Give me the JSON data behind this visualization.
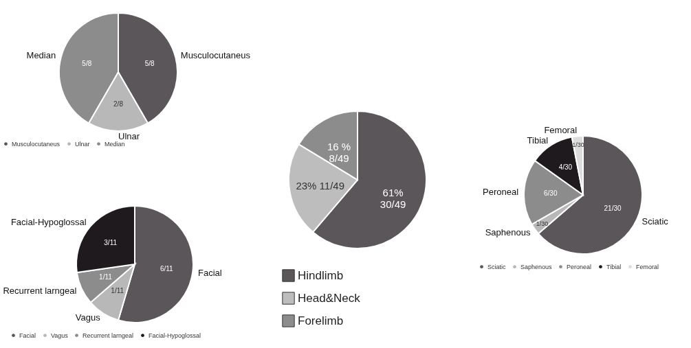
{
  "chart_data": [
    {
      "type": "pie",
      "categories": [
        "Hindlimb",
        "Head&Neck",
        "Forelimb"
      ],
      "values": [
        30,
        11,
        8
      ],
      "colors": [
        "#5a5659",
        "#bdbdbd",
        "#8c8c8c"
      ],
      "value_labels": [
        "61%\n30/49",
        "23%  11/49",
        "16 %\n8/49"
      ],
      "legend": "bottom"
    },
    {
      "type": "pie",
      "categories": [
        "Musculocutaneus",
        "Ulnar",
        "Median"
      ],
      "values": [
        0.625,
        0.25,
        0.625
      ],
      "colors": [
        "#5a5659",
        "#b8b8b8",
        "#8c8c8c"
      ],
      "value_labels": [
        "5/8",
        "2/8",
        "5/8"
      ],
      "legend": "bottom"
    },
    {
      "type": "pie",
      "categories": [
        "Facial",
        "Vagus",
        "Recurrent larngeal",
        "Facial-Hypoglossal"
      ],
      "values": [
        0.5455,
        0.0909,
        0.0909,
        0.2727
      ],
      "colors": [
        "#5a5659",
        "#b8b8b8",
        "#8c8c8c",
        "#1e1a1d"
      ],
      "value_labels": [
        "6/11",
        "1/11",
        "1/11",
        "3/11"
      ],
      "legend": "bottom"
    },
    {
      "type": "pie",
      "categories": [
        "Sciatic",
        "Saphenous",
        "Peroneal",
        "Tibial",
        "Femoral"
      ],
      "values": [
        63.64,
        3.03,
        18.18,
        12.12,
        3.03
      ],
      "colors": [
        "#5a5659",
        "#b8b8b8",
        "#8c8c8c",
        "#1e1a1d",
        "#dcdcdc"
      ],
      "value_labels": [
        "21/30",
        "1/30",
        "6/30",
        "4/30",
        "1/30"
      ],
      "legend": "bottom"
    }
  ]
}
